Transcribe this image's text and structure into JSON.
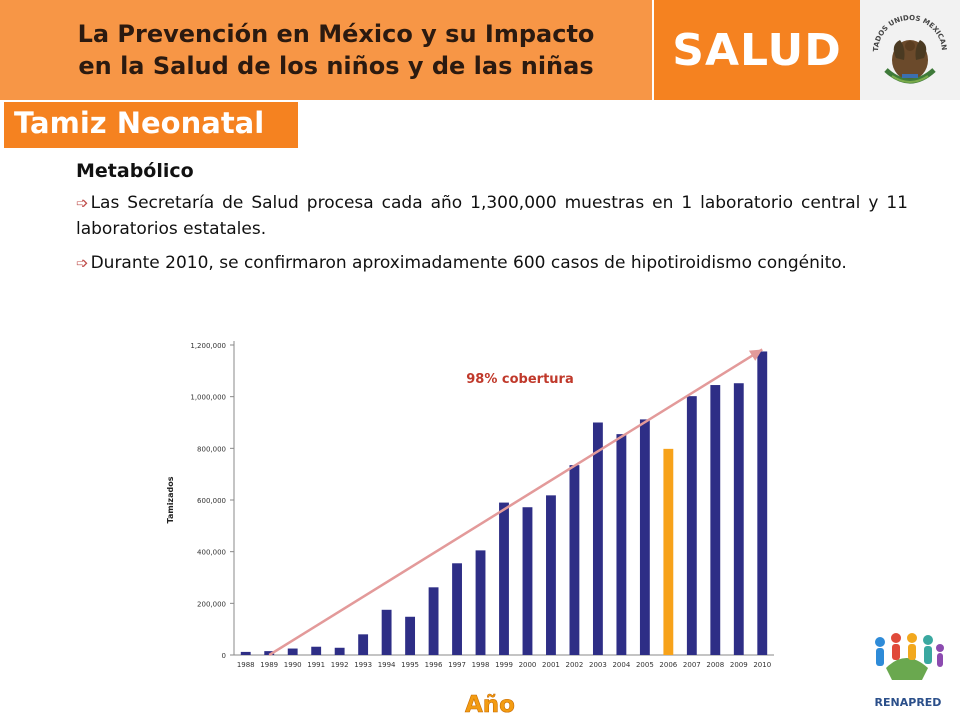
{
  "header": {
    "title_line1": "La Prevención en México y su Impacto",
    "title_line2": "en la Salud de los niños y de las niñas",
    "brand": "SALUD",
    "seal_text": "ESTADOS UNIDOS MEXICANOS",
    "brand_color": "#f58220"
  },
  "section_tab": "Tamiz Neonatal",
  "content": {
    "subtitle": "Metabólico",
    "bullet_icon": "arrow-right-icon",
    "bullets": [
      "Las Secretaría de Salud procesa cada año 1,300,000 muestras en 1 laboratorio central y 11 laboratorios estatales.",
      "Durante 2010, se confirmaron aproximadamente 600 casos de hipotiroidismo congénito."
    ]
  },
  "chart_data": {
    "type": "bar",
    "title": "",
    "xlabel": "Año",
    "ylabel": "Tamizados",
    "ylim": [
      0,
      1200000
    ],
    "yticks": [
      0,
      200000,
      400000,
      600000,
      800000,
      1000000,
      1200000
    ],
    "ytick_labels": [
      "0",
      "200,000",
      "400,000",
      "600,000",
      "800,000",
      "1,000,000",
      "1,200,000"
    ],
    "categories": [
      "1988",
      "1989",
      "1990",
      "1991",
      "1992",
      "1993",
      "1994",
      "1995",
      "1996",
      "1997",
      "1998",
      "1999",
      "2000",
      "2001",
      "2002",
      "2003",
      "2004",
      "2005",
      "2006",
      "2007",
      "2008",
      "2009",
      "2010"
    ],
    "values": [
      12000,
      15000,
      25000,
      32000,
      28000,
      80000,
      175000,
      148000,
      262000,
      355000,
      405000,
      590000,
      572000,
      618000,
      735000,
      900000,
      855000,
      912000,
      798000,
      1002000,
      1045000,
      1052000,
      1175000
    ],
    "bar_color": "#2e2e86",
    "highlight_category": "2006",
    "highlight_color": "#f7a21a",
    "annotation": "98% cobertura",
    "annotation_color": "#c0392b",
    "trend_arrow": {
      "from": [
        "1989",
        0
      ],
      "to": [
        "2010",
        1175000
      ],
      "color": "#e39a9a"
    },
    "grid": false
  },
  "footer": {
    "logo_text": "RENAPRED"
  }
}
